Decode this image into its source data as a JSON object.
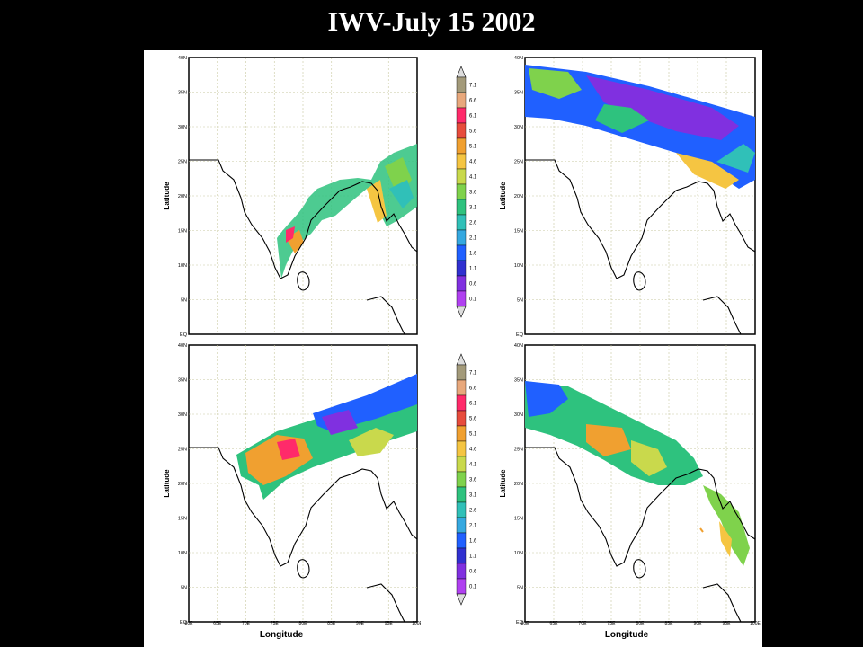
{
  "title": "IWV-July 15 2002",
  "xlabel": "Longitude",
  "ylabel": "Latitude",
  "lat_ticks": [
    "40N",
    "35N",
    "30N",
    "25N",
    "20N",
    "15N",
    "10N",
    "5N",
    "EQ"
  ],
  "lon_ticks": [
    "60E",
    "65E",
    "70E",
    "75E",
    "80E",
    "85E",
    "90E",
    "95E",
    "100E"
  ],
  "colorbar": {
    "labels": [
      "7.1",
      "6.6",
      "6.1",
      "5.6",
      "5.1",
      "4.6",
      "4.1",
      "3.6",
      "3.1",
      "2.6",
      "2.1",
      "1.6",
      "1.1",
      "0.6",
      "0.1"
    ],
    "colors": [
      "#a39a7a",
      "#e8a87c",
      "#ff2a6a",
      "#e74c3c",
      "#f0a030",
      "#f5c542",
      "#c9d94c",
      "#7fd24c",
      "#2ec27e",
      "#30c0b8",
      "#35a8e0",
      "#2060ff",
      "#3030d0",
      "#8030e0",
      "#b040f0"
    ]
  },
  "panels": [
    {
      "id": "top-left"
    },
    {
      "id": "top-right"
    },
    {
      "id": "bottom-left"
    },
    {
      "id": "bottom-right"
    }
  ]
}
